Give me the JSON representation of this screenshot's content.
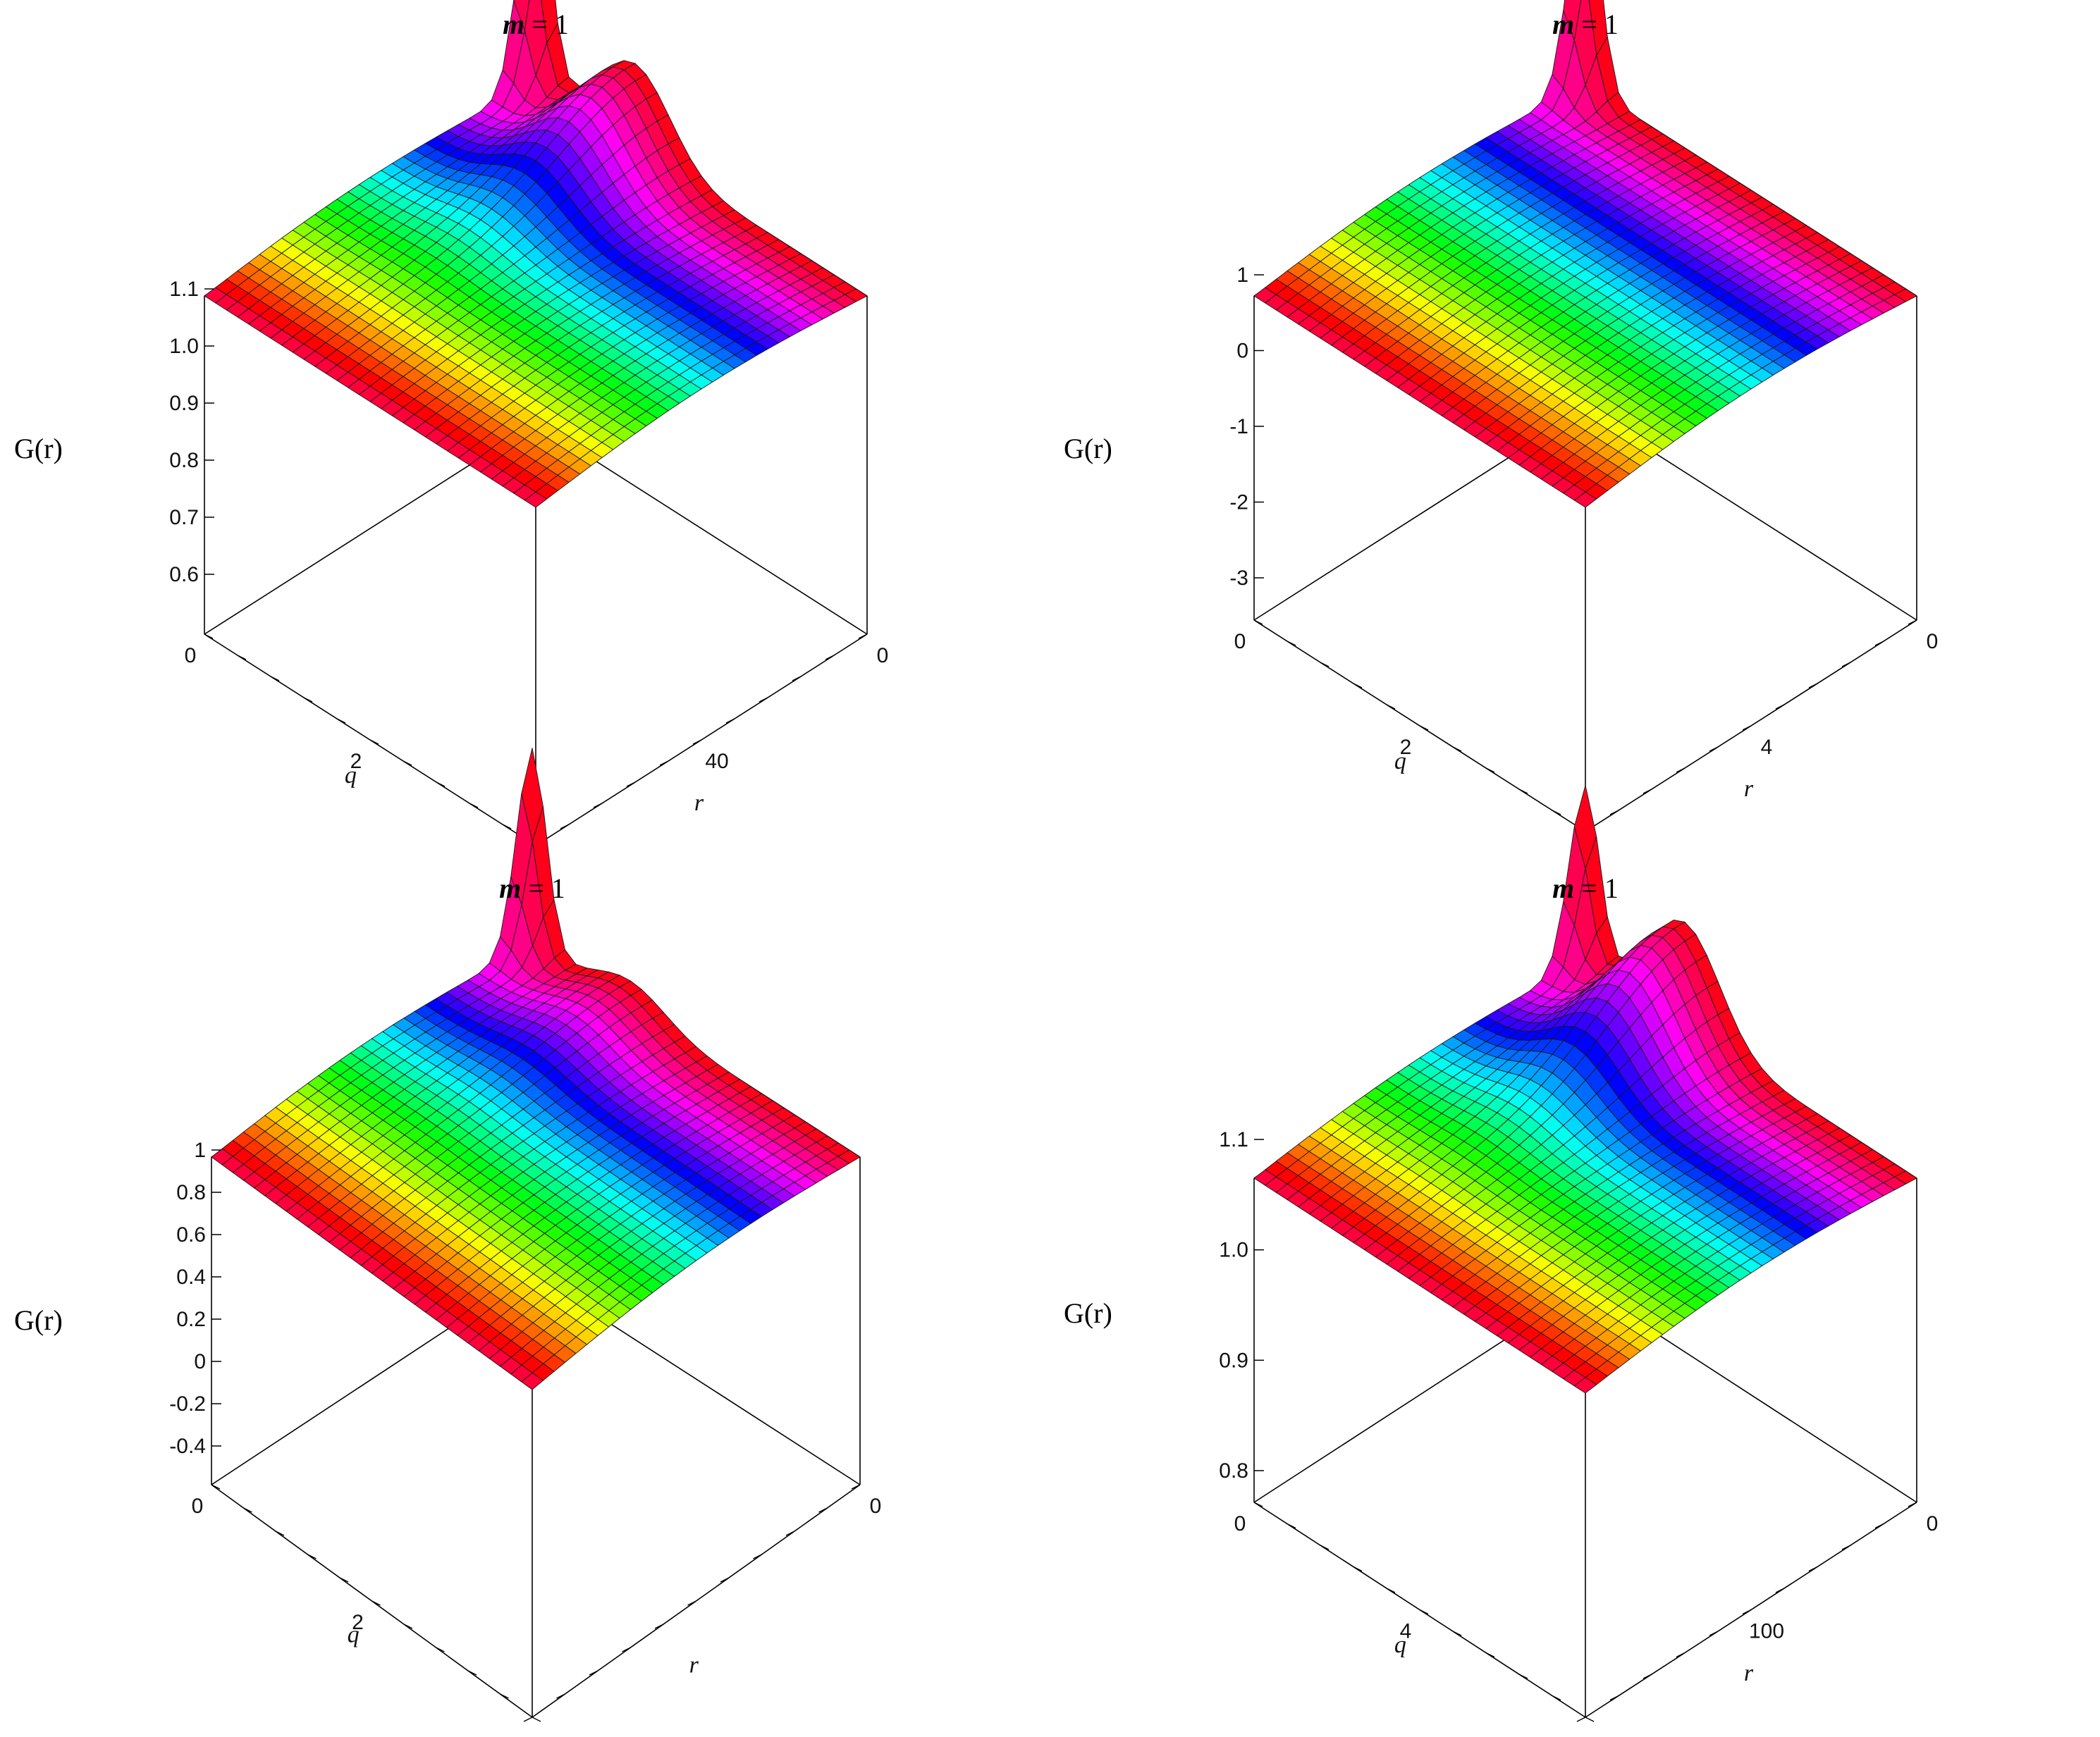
{
  "chart_data": [
    {
      "type": "surface3d",
      "title_var": "m",
      "title_eq": " = 1",
      "zlabel": "G(r)",
      "xlabel": "q",
      "ylabel": "r",
      "x_ticks": [
        "0",
        "2"
      ],
      "y_ticks": [
        "0",
        "40"
      ],
      "z_ticks": [
        "1.1",
        "1.0",
        "0.9",
        "0.8",
        "0.7",
        "0.6"
      ],
      "zlim": [
        0.55,
        1.12
      ],
      "surface": {
        "near_edge_value": 0.98,
        "far_edge_value": 1.08,
        "q_range": [
          0,
          4
        ],
        "r_range": [
          0,
          80
        ],
        "spike_peak": 1.75,
        "bump_peak": 1.05
      }
    },
    {
      "type": "surface3d",
      "title_var": "m",
      "title_eq": " = 1",
      "zlabel": "G(r)",
      "xlabel": "q",
      "ylabel": "r",
      "x_ticks": [
        "0",
        "2"
      ],
      "y_ticks": [
        "0",
        "4"
      ],
      "z_ticks": [
        "1",
        "0",
        "-1",
        "-2",
        "-3"
      ],
      "zlim": [
        -3.5,
        1.2
      ],
      "surface": {
        "near_edge_value": 0.8,
        "far_edge_value": 0.9,
        "q_range": [
          0,
          4
        ],
        "r_range": [
          0,
          8
        ],
        "spike_peak": 3.5,
        "bump_peak": 1.0
      }
    },
    {
      "type": "surface3d",
      "title_var": "m",
      "title_eq": " = 1",
      "zlabel": "G(r)",
      "xlabel": "q",
      "ylabel": "r",
      "x_ticks": [
        "0",
        "2"
      ],
      "y_ticks": [
        "0"
      ],
      "z_ticks": [
        "1",
        "0.8",
        "0.6",
        "0.4",
        "0.2",
        "0",
        "-0.2",
        "-0.4"
      ],
      "zlim": [
        -0.5,
        1.1
      ],
      "surface": {
        "near_edge_value": 0.93,
        "far_edge_value": 1.0,
        "q_range": [
          0,
          4
        ],
        "r_range": [
          0,
          8
        ],
        "spike_peak": 2.3,
        "bump_peak": 1.0
      }
    },
    {
      "type": "surface3d",
      "title_var": "m",
      "title_eq": " = 1",
      "zlabel": "G(r)",
      "xlabel": "q",
      "ylabel": "r",
      "x_ticks": [
        "0",
        "4"
      ],
      "y_ticks": [
        "0",
        "100"
      ],
      "z_ticks": [
        "1.1",
        "1.0",
        "0.9",
        "0.8"
      ],
      "zlim": [
        0.76,
        1.18
      ],
      "surface": {
        "near_edge_value": 0.99,
        "far_edge_value": 1.1,
        "q_range": [
          0,
          8
        ],
        "r_range": [
          0,
          200
        ],
        "spike_peak": 1.55,
        "bump_peak": 1.15
      }
    }
  ]
}
